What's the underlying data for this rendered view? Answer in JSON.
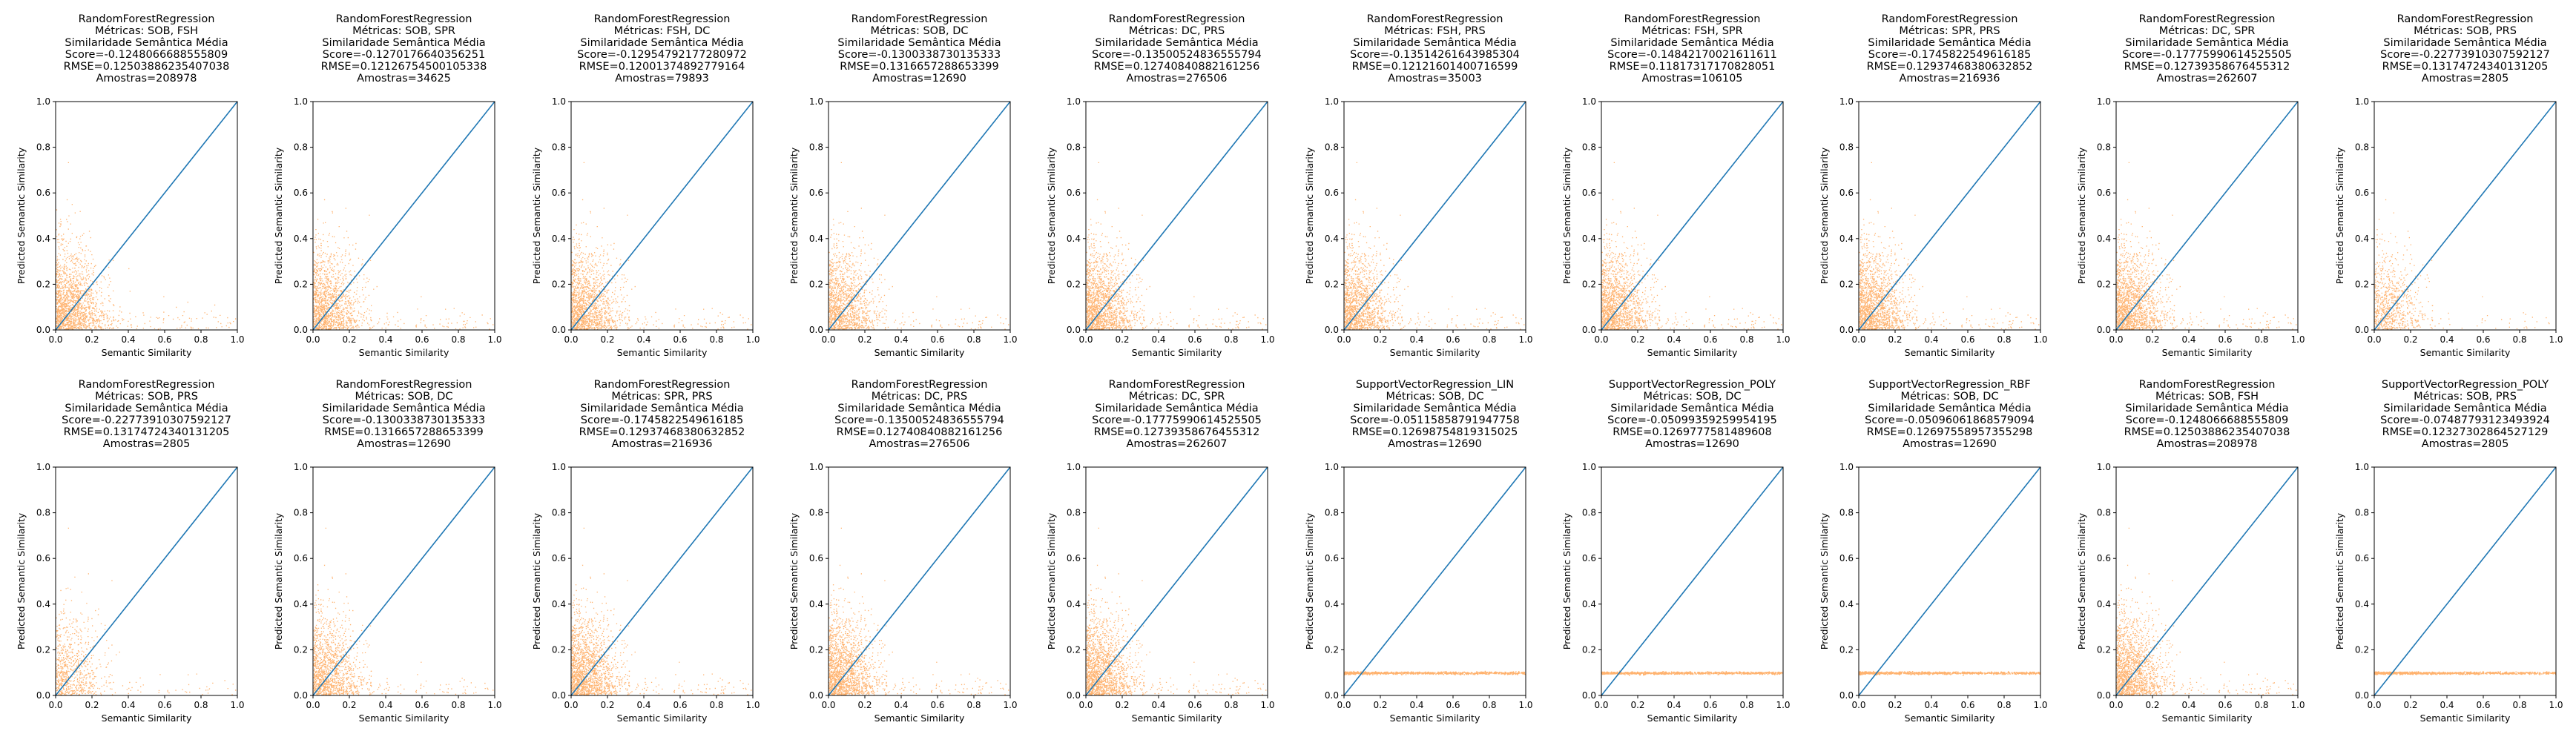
{
  "figure": {
    "scatter_color": "#ff7f0e",
    "line_color": "#1f77b4"
  },
  "chart_data": [
    {
      "type": "scatter",
      "title_lines": [
        "RandomForestRegression",
        "Métricas: SOB, FSH",
        "Similaridade Semântica Média",
        "Score=-0.1248066688555809",
        "RMSE=0.12503886235407038",
        "Amostras=208978"
      ],
      "xlabel": "Semantic Similarity",
      "ylabel": "Predicted Semantic Similarity",
      "xlim": [
        0,
        1
      ],
      "ylim": [
        0,
        1
      ],
      "xticks": [
        "0.0",
        "0.2",
        "0.4",
        "0.6",
        "0.8",
        "1.0"
      ],
      "yticks": [
        "0.0",
        "0.2",
        "0.4",
        "0.6",
        "0.8",
        "1.0"
      ],
      "reference_line": [
        [
          0,
          0
        ],
        [
          1,
          1
        ]
      ],
      "pattern": "cloud",
      "density": 1.0
    },
    {
      "type": "scatter",
      "title_lines": [
        "RandomForestRegression",
        "Métricas: SOB, SPR",
        "Similaridade Semântica Média",
        "Score=-0.1270176640356251",
        "RMSE=0.12126754500105338",
        "Amostras=34625"
      ],
      "xlabel": "Semantic Similarity",
      "ylabel": "Predicted Semantic Similarity",
      "xlim": [
        0,
        1
      ],
      "ylim": [
        0,
        1
      ],
      "xticks": [
        "0.0",
        "0.2",
        "0.4",
        "0.6",
        "0.8",
        "1.0"
      ],
      "yticks": [
        "0.0",
        "0.2",
        "0.4",
        "0.6",
        "0.8",
        "1.0"
      ],
      "reference_line": [
        [
          0,
          0
        ],
        [
          1,
          1
        ]
      ],
      "pattern": "cloud",
      "density": 0.85
    },
    {
      "type": "scatter",
      "title_lines": [
        "RandomForestRegression",
        "Métricas: FSH, DC",
        "Similaridade Semântica Média",
        "Score=-0.12954792177280972",
        "RMSE=0.12001374892779164",
        "Amostras=79893"
      ],
      "xlabel": "Semantic Similarity",
      "ylabel": "Predicted Semantic Similarity",
      "xlim": [
        0,
        1
      ],
      "ylim": [
        0,
        1
      ],
      "xticks": [
        "0.0",
        "0.2",
        "0.4",
        "0.6",
        "0.8",
        "1.0"
      ],
      "yticks": [
        "0.0",
        "0.2",
        "0.4",
        "0.6",
        "0.8",
        "1.0"
      ],
      "reference_line": [
        [
          0,
          0
        ],
        [
          1,
          1
        ]
      ],
      "pattern": "cloud",
      "density": 0.9
    },
    {
      "type": "scatter",
      "title_lines": [
        "RandomForestRegression",
        "Métricas: SOB, DC",
        "Similaridade Semântica Média",
        "Score=-0.1300338730135333",
        "RMSE=0.1316657288653399",
        "Amostras=12690"
      ],
      "xlabel": "Semantic Similarity",
      "ylabel": "Predicted Semantic Similarity",
      "xlim": [
        0,
        1
      ],
      "ylim": [
        0,
        1
      ],
      "xticks": [
        "0.0",
        "0.2",
        "0.4",
        "0.6",
        "0.8",
        "1.0"
      ],
      "yticks": [
        "0.0",
        "0.2",
        "0.4",
        "0.6",
        "0.8",
        "1.0"
      ],
      "reference_line": [
        [
          0,
          0
        ],
        [
          1,
          1
        ]
      ],
      "pattern": "cloud",
      "density": 0.8
    },
    {
      "type": "scatter",
      "title_lines": [
        "RandomForestRegression",
        "Métricas: DC, PRS",
        "Similaridade Semântica Média",
        "Score=-0.13500524836555794",
        "RMSE=0.12740840882161256",
        "Amostras=276506"
      ],
      "xlabel": "Semantic Similarity",
      "ylabel": "Predicted Semantic Similarity",
      "xlim": [
        0,
        1
      ],
      "ylim": [
        0,
        1
      ],
      "xticks": [
        "0.0",
        "0.2",
        "0.4",
        "0.6",
        "0.8",
        "1.0"
      ],
      "yticks": [
        "0.0",
        "0.2",
        "0.4",
        "0.6",
        "0.8",
        "1.0"
      ],
      "reference_line": [
        [
          0,
          0
        ],
        [
          1,
          1
        ]
      ],
      "pattern": "cloud",
      "density": 1.0
    },
    {
      "type": "scatter",
      "title_lines": [
        "RandomForestRegression",
        "Métricas: FSH, PRS",
        "Similaridade Semântica Média",
        "Score=-0.13514261643985304",
        "RMSE=0.12121601400716599",
        "Amostras=35003"
      ],
      "xlabel": "Semantic Similarity",
      "ylabel": "Predicted Semantic Similarity",
      "xlim": [
        0,
        1
      ],
      "ylim": [
        0,
        1
      ],
      "xticks": [
        "0.0",
        "0.2",
        "0.4",
        "0.6",
        "0.8",
        "1.0"
      ],
      "yticks": [
        "0.0",
        "0.2",
        "0.4",
        "0.6",
        "0.8",
        "1.0"
      ],
      "reference_line": [
        [
          0,
          0
        ],
        [
          1,
          1
        ]
      ],
      "pattern": "cloud",
      "density": 0.85
    },
    {
      "type": "scatter",
      "title_lines": [
        "RandomForestRegression",
        "Métricas: FSH, SPR",
        "Similaridade Semântica Média",
        "Score=-0.14842170021611611",
        "RMSE=0.11817317170828051",
        "Amostras=106105"
      ],
      "xlabel": "Semantic Similarity",
      "ylabel": "Predicted Semantic Similarity",
      "xlim": [
        0,
        1
      ],
      "ylim": [
        0,
        1
      ],
      "xticks": [
        "0.0",
        "0.2",
        "0.4",
        "0.6",
        "0.8",
        "1.0"
      ],
      "yticks": [
        "0.0",
        "0.2",
        "0.4",
        "0.6",
        "0.8",
        "1.0"
      ],
      "reference_line": [
        [
          0,
          0
        ],
        [
          1,
          1
        ]
      ],
      "pattern": "cloud",
      "density": 0.95
    },
    {
      "type": "scatter",
      "title_lines": [
        "RandomForestRegression",
        "Métricas: SPR, PRS",
        "Similaridade Semântica Média",
        "Score=-0.1745822549616185",
        "RMSE=0.12937468380632852",
        "Amostras=216936"
      ],
      "xlabel": "Semantic Similarity",
      "ylabel": "Predicted Semantic Similarity",
      "xlim": [
        0,
        1
      ],
      "ylim": [
        0,
        1
      ],
      "xticks": [
        "0.0",
        "0.2",
        "0.4",
        "0.6",
        "0.8",
        "1.0"
      ],
      "yticks": [
        "0.0",
        "0.2",
        "0.4",
        "0.6",
        "0.8",
        "1.0"
      ],
      "reference_line": [
        [
          0,
          0
        ],
        [
          1,
          1
        ]
      ],
      "pattern": "cloud",
      "density": 1.0
    },
    {
      "type": "scatter",
      "title_lines": [
        "RandomForestRegression",
        "Métricas: DC, SPR",
        "Similaridade Semântica Média",
        "Score=-0.17775990614525505",
        "RMSE=0.12739358676455312",
        "Amostras=262607"
      ],
      "xlabel": "Semantic Similarity",
      "ylabel": "Predicted Semantic Similarity",
      "xlim": [
        0,
        1
      ],
      "ylim": [
        0,
        1
      ],
      "xticks": [
        "0.0",
        "0.2",
        "0.4",
        "0.6",
        "0.8",
        "1.0"
      ],
      "yticks": [
        "0.0",
        "0.2",
        "0.4",
        "0.6",
        "0.8",
        "1.0"
      ],
      "reference_line": [
        [
          0,
          0
        ],
        [
          1,
          1
        ]
      ],
      "pattern": "cloud",
      "density": 1.0
    },
    {
      "type": "scatter",
      "title_lines": [
        "RandomForestRegression",
        "Métricas: SOB, PRS",
        "Similaridade Semântica Média",
        "Score=-0.22773910307592127",
        "RMSE=0.13174724340131205",
        "Amostras=2805"
      ],
      "xlabel": "Semantic Similarity",
      "ylabel": "Predicted Semantic Similarity",
      "xlim": [
        0,
        1
      ],
      "ylim": [
        0,
        1
      ],
      "xticks": [
        "0.0",
        "0.2",
        "0.4",
        "0.6",
        "0.8",
        "1.0"
      ],
      "yticks": [
        "0.0",
        "0.2",
        "0.4",
        "0.6",
        "0.8",
        "1.0"
      ],
      "reference_line": [
        [
          0,
          0
        ],
        [
          1,
          1
        ]
      ],
      "pattern": "cloud",
      "density": 0.45
    },
    {
      "type": "scatter",
      "title_lines": [
        "RandomForestRegression",
        "Métricas: SOB, PRS",
        "Similaridade Semântica Média",
        "Score=-0.22773910307592127",
        "RMSE=0.13174724340131205",
        "Amostras=2805"
      ],
      "xlabel": "Semantic Similarity",
      "ylabel": "Predicted Semantic Similarity",
      "xlim": [
        0,
        1
      ],
      "ylim": [
        0,
        1
      ],
      "xticks": [
        "0.0",
        "0.2",
        "0.4",
        "0.6",
        "0.8",
        "1.0"
      ],
      "yticks": [
        "0.0",
        "0.2",
        "0.4",
        "0.6",
        "0.8",
        "1.0"
      ],
      "reference_line": [
        [
          0,
          0
        ],
        [
          1,
          1
        ]
      ],
      "pattern": "cloud",
      "density": 0.45
    },
    {
      "type": "scatter",
      "title_lines": [
        "RandomForestRegression",
        "Métricas: SOB, DC",
        "Similaridade Semântica Média",
        "Score=-0.1300338730135333",
        "RMSE=0.1316657288653399",
        "Amostras=12690"
      ],
      "xlabel": "Semantic Similarity",
      "ylabel": "Predicted Semantic Similarity",
      "xlim": [
        0,
        1
      ],
      "ylim": [
        0,
        1
      ],
      "xticks": [
        "0.0",
        "0.2",
        "0.4",
        "0.6",
        "0.8",
        "1.0"
      ],
      "yticks": [
        "0.0",
        "0.2",
        "0.4",
        "0.6",
        "0.8",
        "1.0"
      ],
      "reference_line": [
        [
          0,
          0
        ],
        [
          1,
          1
        ]
      ],
      "pattern": "cloud",
      "density": 0.8
    },
    {
      "type": "scatter",
      "title_lines": [
        "RandomForestRegression",
        "Métricas: SPR, PRS",
        "Similaridade Semântica Média",
        "Score=-0.1745822549616185",
        "RMSE=0.12937468380632852",
        "Amostras=216936"
      ],
      "xlabel": "Semantic Similarity",
      "ylabel": "Predicted Semantic Similarity",
      "xlim": [
        0,
        1
      ],
      "ylim": [
        0,
        1
      ],
      "xticks": [
        "0.0",
        "0.2",
        "0.4",
        "0.6",
        "0.8",
        "1.0"
      ],
      "yticks": [
        "0.0",
        "0.2",
        "0.4",
        "0.6",
        "0.8",
        "1.0"
      ],
      "reference_line": [
        [
          0,
          0
        ],
        [
          1,
          1
        ]
      ],
      "pattern": "cloud",
      "density": 1.0
    },
    {
      "type": "scatter",
      "title_lines": [
        "RandomForestRegression",
        "Métricas: DC, PRS",
        "Similaridade Semântica Média",
        "Score=-0.13500524836555794",
        "RMSE=0.12740840882161256",
        "Amostras=276506"
      ],
      "xlabel": "Semantic Similarity",
      "ylabel": "Predicted Semantic Similarity",
      "xlim": [
        0,
        1
      ],
      "ylim": [
        0,
        1
      ],
      "xticks": [
        "0.0",
        "0.2",
        "0.4",
        "0.6",
        "0.8",
        "1.0"
      ],
      "yticks": [
        "0.0",
        "0.2",
        "0.4",
        "0.6",
        "0.8",
        "1.0"
      ],
      "reference_line": [
        [
          0,
          0
        ],
        [
          1,
          1
        ]
      ],
      "pattern": "cloud",
      "density": 1.0
    },
    {
      "type": "scatter",
      "title_lines": [
        "RandomForestRegression",
        "Métricas: DC, SPR",
        "Similaridade Semântica Média",
        "Score=-0.17775990614525505",
        "RMSE=0.12739358676455312",
        "Amostras=262607"
      ],
      "xlabel": "Semantic Similarity",
      "ylabel": "Predicted Semantic Similarity",
      "xlim": [
        0,
        1
      ],
      "ylim": [
        0,
        1
      ],
      "xticks": [
        "0.0",
        "0.2",
        "0.4",
        "0.6",
        "0.8",
        "1.0"
      ],
      "yticks": [
        "0.0",
        "0.2",
        "0.4",
        "0.6",
        "0.8",
        "1.0"
      ],
      "reference_line": [
        [
          0,
          0
        ],
        [
          1,
          1
        ]
      ],
      "pattern": "cloud",
      "density": 1.0
    },
    {
      "type": "scatter",
      "title_lines": [
        "SupportVectorRegression_LIN",
        "Métricas: SOB, DC",
        "Similaridade Semântica Média",
        "Score=-0.05115858791947758",
        "RMSE=0.12698754819315025",
        "Amostras=12690"
      ],
      "xlabel": "Semantic Similarity",
      "ylabel": "Predicted Semantic Similarity",
      "xlim": [
        0,
        1
      ],
      "ylim": [
        0,
        1
      ],
      "xticks": [
        "0.0",
        "0.2",
        "0.4",
        "0.6",
        "0.8",
        "1.0"
      ],
      "yticks": [
        "0.0",
        "0.2",
        "0.4",
        "0.6",
        "0.8",
        "1.0"
      ],
      "reference_line": [
        [
          0,
          0
        ],
        [
          1,
          1
        ]
      ],
      "pattern": "flat",
      "flat_y": 0.1
    },
    {
      "type": "scatter",
      "title_lines": [
        "SupportVectorRegression_POLY",
        "Métricas: SOB, DC",
        "Similaridade Semântica Média",
        "Score=-0.05099359259954195",
        "RMSE=0.1269777581489608",
        "Amostras=12690"
      ],
      "xlabel": "Semantic Similarity",
      "ylabel": "Predicted Semantic Similarity",
      "xlim": [
        0,
        1
      ],
      "ylim": [
        0,
        1
      ],
      "xticks": [
        "0.0",
        "0.2",
        "0.4",
        "0.6",
        "0.8",
        "1.0"
      ],
      "yticks": [
        "0.0",
        "0.2",
        "0.4",
        "0.6",
        "0.8",
        "1.0"
      ],
      "reference_line": [
        [
          0,
          0
        ],
        [
          1,
          1
        ]
      ],
      "pattern": "flat",
      "flat_y": 0.1
    },
    {
      "type": "scatter",
      "title_lines": [
        "SupportVectorRegression_RBF",
        "Métricas: SOB, DC",
        "Similaridade Semântica Média",
        "Score=-0.05096061868579094",
        "RMSE=0.12697558957355298",
        "Amostras=12690"
      ],
      "xlabel": "Semantic Similarity",
      "ylabel": "Predicted Semantic Similarity",
      "xlim": [
        0,
        1
      ],
      "ylim": [
        0,
        1
      ],
      "xticks": [
        "0.0",
        "0.2",
        "0.4",
        "0.6",
        "0.8",
        "1.0"
      ],
      "yticks": [
        "0.0",
        "0.2",
        "0.4",
        "0.6",
        "0.8",
        "1.0"
      ],
      "reference_line": [
        [
          0,
          0
        ],
        [
          1,
          1
        ]
      ],
      "pattern": "flat",
      "flat_y": 0.1
    },
    {
      "type": "scatter",
      "title_lines": [
        "RandomForestRegression",
        "Métricas: SOB, FSH",
        "Similaridade Semântica Média",
        "Score=-0.1248066688555809",
        "RMSE=0.12503886235407038",
        "Amostras=208978"
      ],
      "xlabel": "Semantic Similarity",
      "ylabel": "Predicted Semantic Similarity",
      "xlim": [
        0,
        1
      ],
      "ylim": [
        0,
        1
      ],
      "xticks": [
        "0.0",
        "0.2",
        "0.4",
        "0.6",
        "0.8",
        "1.0"
      ],
      "yticks": [
        "0.0",
        "0.2",
        "0.4",
        "0.6",
        "0.8",
        "1.0"
      ],
      "reference_line": [
        [
          0,
          0
        ],
        [
          1,
          1
        ]
      ],
      "pattern": "cloud",
      "density": 1.0
    },
    {
      "type": "scatter",
      "title_lines": [
        "SupportVectorRegression_POLY",
        "Métricas: SOB, PRS",
        "Similaridade Semântica Média",
        "Score=-0.07487793123493924",
        "RMSE=0.12327302864527129",
        "Amostras=2805"
      ],
      "xlabel": "Semantic Similarity",
      "ylabel": "Predicted Semantic Similarity",
      "xlim": [
        0,
        1
      ],
      "ylim": [
        0,
        1
      ],
      "xticks": [
        "0.0",
        "0.2",
        "0.4",
        "0.6",
        "0.8",
        "1.0"
      ],
      "yticks": [
        "0.0",
        "0.2",
        "0.4",
        "0.6",
        "0.8",
        "1.0"
      ],
      "reference_line": [
        [
          0,
          0
        ],
        [
          1,
          1
        ]
      ],
      "pattern": "flat",
      "flat_y": 0.1
    }
  ]
}
